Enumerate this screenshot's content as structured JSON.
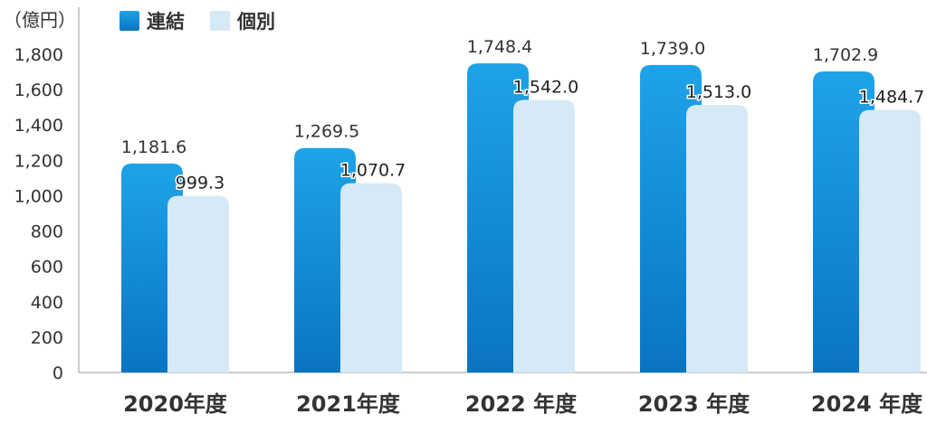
{
  "chart_data": {
    "type": "bar",
    "unit_label": "（億円）",
    "categories": [
      "2020年度",
      "2021年度",
      "2022 年度",
      "2023 年度",
      "2024 年度"
    ],
    "series": [
      {
        "name": "連結",
        "values": [
          1181.6,
          1269.5,
          1748.4,
          1739.0,
          1702.9
        ],
        "labels": [
          "1,181.6",
          "1,269.5",
          "1,748.4",
          "1,739.0",
          "1,702.9"
        ],
        "color_top": "#1ea3e8",
        "color_bottom": "#0a74c2"
      },
      {
        "name": "個別",
        "values": [
          999.3,
          1070.7,
          1542.0,
          1513.0,
          1484.7
        ],
        "labels": [
          "999.3",
          "1,070.7",
          "1,542.0",
          "1,513.0",
          "1,484.7"
        ],
        "color_top": "#d6e9f6",
        "color_bottom": "#d6e9f6"
      }
    ],
    "yticks": [
      "0",
      "200",
      "400",
      "600",
      "800",
      "1,000",
      "1,200",
      "1,400",
      "1,600",
      "1,800"
    ],
    "ylim": [
      0,
      1800
    ],
    "grid": false,
    "legend_position": "top-left"
  }
}
